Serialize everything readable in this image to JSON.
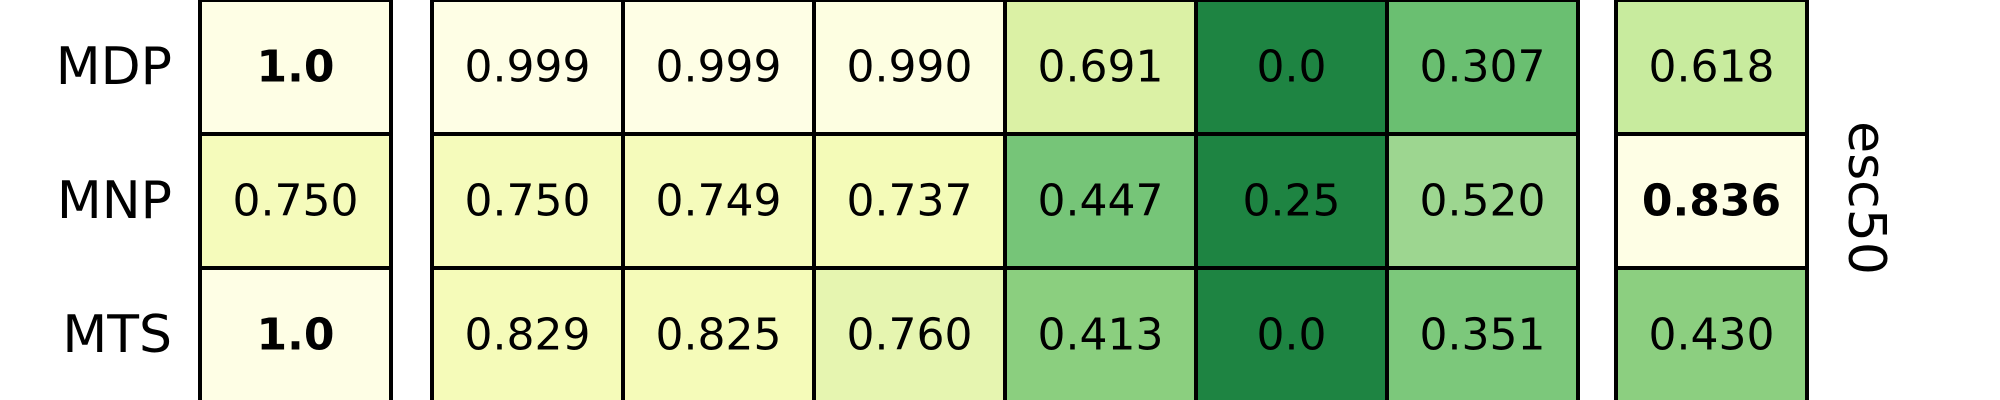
{
  "chart_data": {
    "type": "heatmap",
    "title": "",
    "xlabel": "",
    "ylabel": "",
    "side_label": "esc50",
    "rows": [
      "MDP",
      "MNP",
      "MTS"
    ],
    "groups": [
      {
        "name": "",
        "columns": 1,
        "values": [
          [
            "1.0"
          ],
          [
            "0.750"
          ],
          [
            "1.0"
          ]
        ],
        "bold": [
          [
            true
          ],
          [
            false
          ],
          [
            true
          ]
        ],
        "colors": [
          [
            "#fefee5"
          ],
          [
            "#f5fbbb"
          ],
          [
            "#fefee5"
          ]
        ]
      },
      {
        "name": "",
        "columns": 6,
        "values": [
          [
            "0.999",
            "0.999",
            "0.990",
            "0.691",
            "0.0",
            "0.307"
          ],
          [
            "0.750",
            "0.749",
            "0.737",
            "0.447",
            "0.25",
            "0.520"
          ],
          [
            "0.829",
            "0.825",
            "0.760",
            "0.413",
            "0.0",
            "0.351"
          ]
        ],
        "bold": [
          [
            false,
            false,
            false,
            false,
            false,
            false
          ],
          [
            false,
            false,
            false,
            false,
            false,
            false
          ],
          [
            false,
            false,
            false,
            false,
            false,
            false
          ]
        ],
        "colors": [
          [
            "#fefee5",
            "#fefee5",
            "#fdfee1",
            "#dbf1a5",
            "#1e8442",
            "#6abf71"
          ],
          [
            "#f5fbbb",
            "#f5fbbb",
            "#f4fbb8",
            "#76c578",
            "#1e8442",
            "#9dd690"
          ],
          [
            "#f5fbb9",
            "#f5fbb9",
            "#e6f5b0",
            "#8bcf7f",
            "#1e8442",
            "#7cc87b"
          ]
        ]
      },
      {
        "name": "",
        "columns": 1,
        "values": [
          [
            "0.618"
          ],
          [
            "0.836"
          ],
          [
            "0.430"
          ]
        ],
        "bold": [
          [
            false
          ],
          [
            true
          ],
          [
            false
          ]
        ],
        "colors": [
          [
            "#c8eb9e"
          ],
          [
            "#fefee5"
          ],
          [
            "#8ccf80"
          ]
        ]
      }
    ]
  }
}
